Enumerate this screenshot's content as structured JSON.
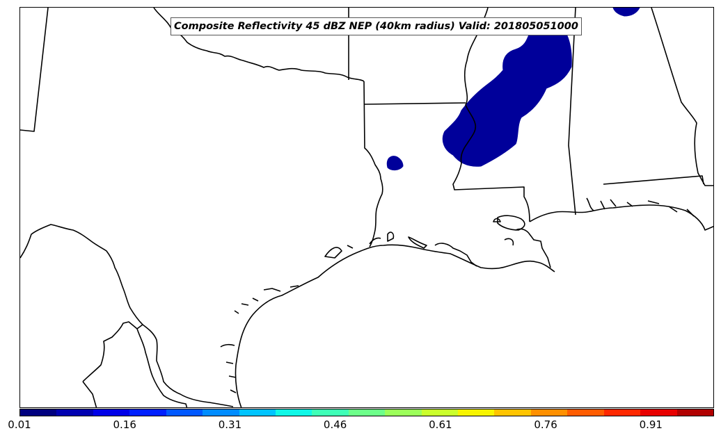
{
  "map": {
    "title": "Composite Reflectivity 45 dBZ NEP (40km radius) Valid: 201805051000",
    "fill_color": "#00009a"
  },
  "colorbar": {
    "colors": [
      "#00007f",
      "#0000b0",
      "#0000e8",
      "#0020ff",
      "#0058ff",
      "#008cff",
      "#00c4ff",
      "#10f8e6",
      "#3fffb7",
      "#6dff8a",
      "#9cff5a",
      "#caff2c",
      "#f8f500",
      "#ffc400",
      "#ff9000",
      "#ff5c00",
      "#ff2800",
      "#e80000",
      "#b00000"
    ],
    "ticks": [
      "0.01",
      "0.16",
      "0.31",
      "0.46",
      "0.61",
      "0.76",
      "0.91"
    ],
    "tick_values": [
      0.01,
      0.16,
      0.31,
      0.46,
      0.61,
      0.76,
      0.91
    ],
    "min": 0.01,
    "max": 1.0
  }
}
